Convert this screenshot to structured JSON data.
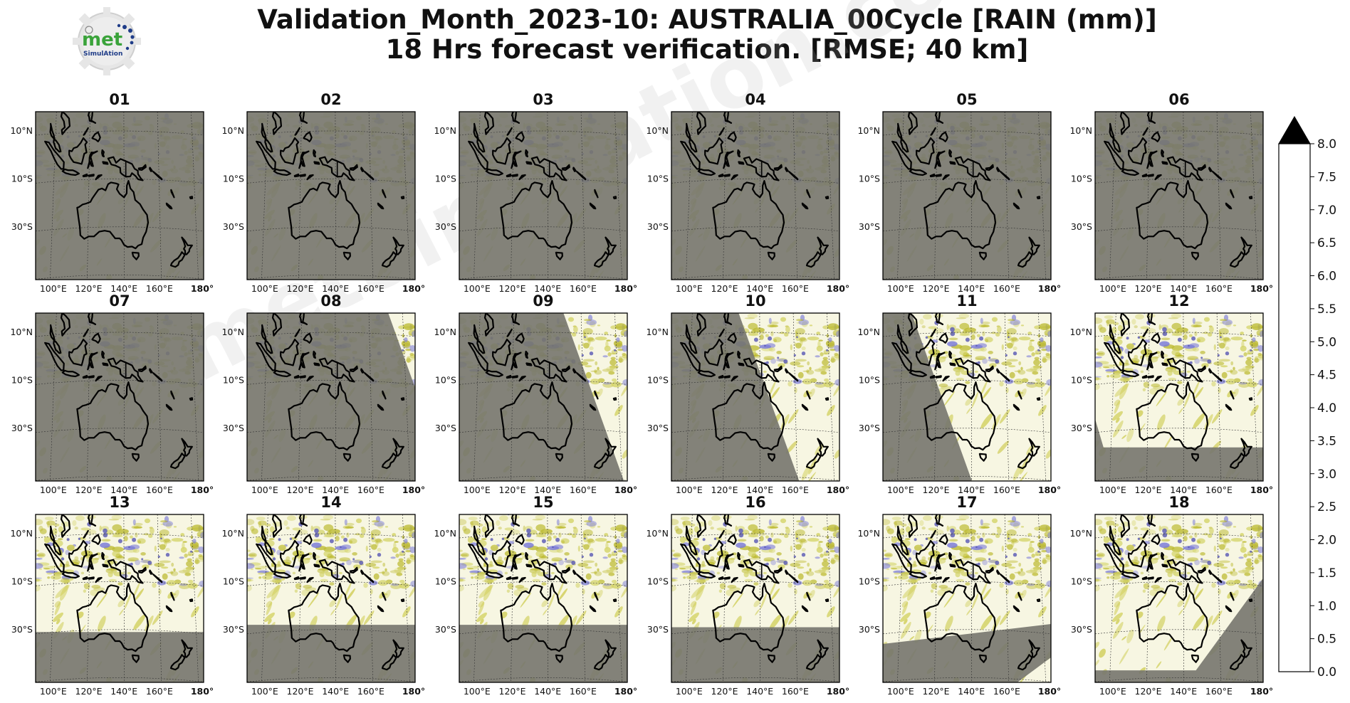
{
  "header": {
    "title_line1": "Validation_Month_2023-10: AUSTRALIA_00Cycle [RAIN (mm)]",
    "title_line2": "18 Hrs forecast verification.  [RMSE; 40 km]",
    "logo_text": "met",
    "logo_subtext": "SimulAtion"
  },
  "watermark": "metSimulation.com",
  "panels": [
    {
      "label": "01",
      "shade": "full"
    },
    {
      "label": "02",
      "shade": "full"
    },
    {
      "label": "03",
      "shade": "full"
    },
    {
      "label": "04",
      "shade": "full"
    },
    {
      "label": "05",
      "shade": "full"
    },
    {
      "label": "06",
      "shade": "full"
    },
    {
      "label": "07",
      "shade": "terminator",
      "shift": 0.85
    },
    {
      "label": "08",
      "shade": "terminator",
      "shift": 0.62
    },
    {
      "label": "09",
      "shade": "terminator",
      "shift": 0.4
    },
    {
      "label": "10",
      "shade": "terminator",
      "shift": 0.18
    },
    {
      "label": "11",
      "shade": "terminator",
      "shift": -0.05
    },
    {
      "label": "12",
      "shade": "corner_low",
      "lat": -38
    },
    {
      "label": "13",
      "shade": "bottom",
      "lat": -31
    },
    {
      "label": "14",
      "shade": "bottom",
      "lat": -28
    },
    {
      "label": "15",
      "shade": "bottom",
      "lat": -28
    },
    {
      "label": "16",
      "shade": "bottom",
      "lat": -29
    },
    {
      "label": "17",
      "shade": "bottom_corner",
      "lat": -36
    },
    {
      "label": "18",
      "shade": "wedge",
      "lat": -47
    }
  ],
  "map_axes": {
    "lat_ticks": [
      "10°N",
      "10°S",
      "30°S"
    ],
    "lon_ticks": [
      "100°E",
      "120°E",
      "140°E",
      "160°E",
      "180°"
    ]
  },
  "colorbar": {
    "ticks": [
      "0.0",
      "0.5",
      "1.0",
      "1.5",
      "2.0",
      "2.5",
      "3.0",
      "3.5",
      "4.0",
      "4.5",
      "5.0",
      "5.5",
      "6.0",
      "6.5",
      "7.0",
      "7.5",
      "8.0"
    ],
    "colors": [
      "#f7f6e2",
      "#e3e4a3",
      "#d8da73",
      "#cccb3e",
      "#c4c22c",
      "#bab41c",
      "#a3a253",
      "#8f8f8f",
      "#8282d8",
      "#7878ee",
      "#6868d8",
      "#5555b0",
      "#444490",
      "#353565",
      "#7e2950",
      "#d4193a",
      "#850f1a"
    ],
    "extend_color": "#000000"
  },
  "shade_color": "#75756e",
  "rain_color": "#c4c440"
}
